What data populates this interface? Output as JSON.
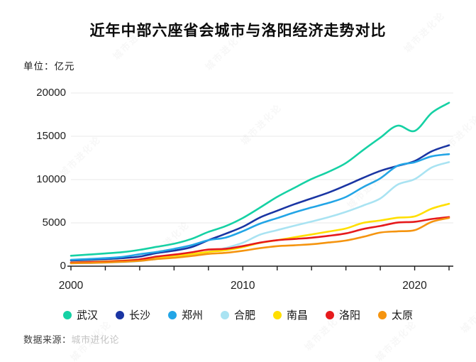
{
  "header": {
    "title": "近年中部六座省会城市与洛阳经济走势对比",
    "unit_label": "单位：亿元"
  },
  "source": {
    "prefix": "数据来源：",
    "name": "城市进化论"
  },
  "watermark": {
    "text": "城市进化论"
  },
  "colors": {
    "wuhan": "#15d1a4",
    "changsha": "#1a35a3",
    "zhengzhou": "#22a5e6",
    "hefei": "#a9e3f2",
    "nanchang": "#ffdf00",
    "luoyang": "#e61a1c",
    "taiyuan": "#f5940f",
    "axis": "#1d1d1d",
    "grid": "#e9e9e9"
  },
  "chart_data": {
    "type": "line",
    "title": "近年中部六座省会城市与洛阳经济走势对比",
    "ylabel": "亿元",
    "xlabel": "",
    "xlim": [
      2000,
      2022
    ],
    "ylim": [
      0,
      20000
    ],
    "yticks": [
      0,
      5000,
      10000,
      15000,
      20000
    ],
    "xtick_step": 2,
    "xticks_labeled": [
      2000,
      2010,
      2020
    ],
    "grid": "horizontal",
    "legend_position": "bottom",
    "x": [
      2000,
      2001,
      2002,
      2003,
      2004,
      2005,
      2006,
      2007,
      2008,
      2009,
      2010,
      2011,
      2012,
      2013,
      2014,
      2015,
      2016,
      2017,
      2018,
      2019,
      2020,
      2021,
      2022
    ],
    "series": [
      {
        "key": "wuhan",
        "name": "武汉",
        "color": "#15d1a4",
        "values": [
          1206,
          1335,
          1467,
          1622,
          1882,
          2238,
          2590,
          3141,
          3960,
          4621,
          5566,
          6762,
          8004,
          9051,
          10069,
          10906,
          11913,
          13410,
          14847,
          16223,
          15616,
          17717,
          18866
        ]
      },
      {
        "key": "changsha",
        "name": "长沙",
        "color": "#1a35a3",
        "values": [
          656,
          728,
          813,
          929,
          1109,
          1520,
          1791,
          2190,
          3001,
          3745,
          4547,
          5619,
          6400,
          7153,
          7825,
          8510,
          9324,
          10200,
          11003,
          11574,
          12143,
          13271,
          13966
        ]
      },
      {
        "key": "zhengzhou",
        "name": "郑州",
        "color": "#22a5e6",
        "values": [
          738,
          829,
          928,
          1074,
          1378,
          1650,
          2002,
          2421,
          3004,
          3300,
          4040,
          4913,
          5547,
          6202,
          6777,
          7315,
          7994,
          9130,
          10143,
          11590,
          12003,
          12691,
          12935
        ]
      },
      {
        "key": "hefei",
        "name": "合肥",
        "color": "#a9e3f2",
        "values": [
          325,
          364,
          413,
          478,
          589,
          853,
          1074,
          1334,
          1665,
          2102,
          2702,
          3637,
          4164,
          4672,
          5158,
          5660,
          6274,
          7003,
          7823,
          9409,
          10046,
          11413,
          12013
        ]
      },
      {
        "key": "nanchang",
        "name": "南昌",
        "color": "#ffdf00",
        "values": [
          427,
          485,
          552,
          640,
          770,
          1008,
          1185,
          1390,
          1650,
          1838,
          2200,
          2689,
          3001,
          3336,
          3668,
          4000,
          4355,
          5003,
          5275,
          5596,
          5746,
          6651,
          7204
        ]
      },
      {
        "key": "luoyang",
        "name": "洛阳",
        "color": "#e61a1c",
        "values": [
          410,
          456,
          511,
          607,
          778,
          1112,
          1332,
          1596,
          1920,
          2001,
          2321,
          2723,
          3001,
          3141,
          3285,
          3508,
          3783,
          4290,
          4640,
          5035,
          5128,
          5447,
          5675
        ]
      },
      {
        "key": "taiyuan",
        "name": "太原",
        "color": "#f5940f",
        "values": [
          336,
          372,
          426,
          512,
          617,
          826,
          970,
          1169,
          1418,
          1545,
          1778,
          2080,
          2311,
          2412,
          2531,
          2735,
          2955,
          3382,
          3884,
          4028,
          4153,
          5121,
          5571
        ]
      }
    ]
  }
}
